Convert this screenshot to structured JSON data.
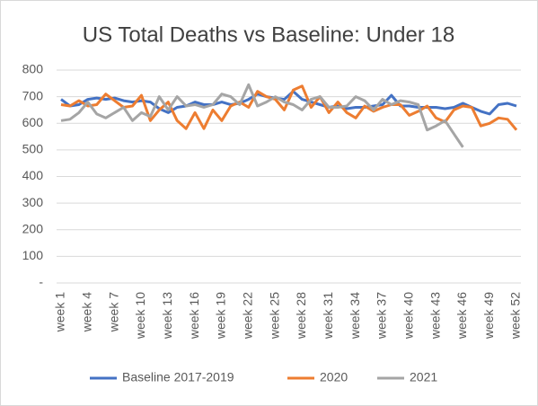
{
  "chart_data": {
    "type": "line",
    "title": "US Total Deaths vs Baseline: Under 18",
    "categories": [
      "week 1",
      null,
      null,
      "week 4",
      null,
      null,
      "week 7",
      null,
      null,
      "week 10",
      null,
      null,
      "week 13",
      null,
      null,
      "week 16",
      null,
      null,
      "week 19",
      null,
      null,
      "week 22",
      null,
      null,
      "week 25",
      null,
      null,
      "week 28",
      null,
      null,
      "week 31",
      null,
      null,
      "week 34",
      null,
      null,
      "week 37",
      null,
      null,
      "week 40",
      null,
      null,
      "week 43",
      null,
      null,
      "week 46",
      null,
      null,
      "week 49",
      null,
      null,
      "week 52"
    ],
    "series": [
      {
        "name": "Baseline 2017-2019",
        "color": "#4472c4",
        "values": [
          690,
          665,
          670,
          690,
          695,
          690,
          695,
          685,
          680,
          685,
          680,
          655,
          640,
          660,
          665,
          680,
          670,
          670,
          680,
          670,
          675,
          690,
          710,
          700,
          695,
          690,
          720,
          690,
          680,
          670,
          660,
          665,
          655,
          660,
          660,
          665,
          670,
          705,
          665,
          665,
          660,
          660,
          660,
          655,
          660,
          675,
          660,
          645,
          635,
          670,
          675,
          665
        ]
      },
      {
        "name": "2020",
        "color": "#ed7d31",
        "values": [
          670,
          665,
          685,
          665,
          670,
          710,
          685,
          660,
          665,
          705,
          610,
          650,
          680,
          610,
          580,
          640,
          580,
          650,
          610,
          665,
          680,
          660,
          720,
          700,
          690,
          650,
          725,
          740,
          660,
          700,
          640,
          680,
          640,
          620,
          665,
          645,
          660,
          670,
          670,
          630,
          645,
          665,
          620,
          605,
          650,
          665,
          660,
          590,
          600,
          620,
          615,
          575
        ]
      },
      {
        "name": "2021",
        "color": "#a5a5a5",
        "values": [
          610,
          615,
          640,
          680,
          635,
          620,
          640,
          660,
          610,
          640,
          625,
          700,
          650,
          700,
          665,
          670,
          660,
          670,
          710,
          700,
          670,
          745,
          665,
          680,
          700,
          680,
          670,
          650,
          690,
          700,
          660,
          660,
          665,
          700,
          685,
          650,
          690,
          670,
          685,
          680,
          670,
          575,
          590,
          610,
          560,
          510,
          null,
          null,
          null,
          null,
          null,
          null
        ]
      }
    ],
    "ylim": [
      0,
      800
    ],
    "yticks": [
      {
        "value": 0,
        "label": "-"
      },
      100,
      200,
      300,
      400,
      500,
      600,
      700,
      800
    ],
    "grid": true
  }
}
